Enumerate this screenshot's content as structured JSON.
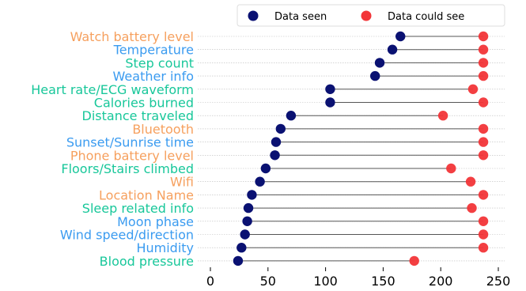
{
  "chart_data": {
    "type": "dumbbell",
    "xlim": [
      0,
      250
    ],
    "xticks": [
      0,
      50,
      100,
      150,
      200,
      250
    ],
    "grid": "horizontal dotted",
    "legend_position": "top",
    "series": [
      {
        "name": "Data seen",
        "color": "#0a1172"
      },
      {
        "name": "Data could see",
        "color": "#f23538"
      }
    ],
    "label_colors": {
      "orange": "#f6a05e",
      "blue": "#3a9bf0",
      "green": "#18c79a"
    },
    "rows": [
      {
        "label": "Watch battery level",
        "color_key": "orange",
        "seen": 165,
        "could_see": 237
      },
      {
        "label": "Temperature",
        "color_key": "blue",
        "seen": 158,
        "could_see": 237
      },
      {
        "label": "Step count",
        "color_key": "green",
        "seen": 147,
        "could_see": 237
      },
      {
        "label": "Weather info",
        "color_key": "blue",
        "seen": 143,
        "could_see": 237
      },
      {
        "label": "Heart rate/ECG waveform",
        "color_key": "green",
        "seen": 104,
        "could_see": 228
      },
      {
        "label": "Calories burned",
        "color_key": "green",
        "seen": 104,
        "could_see": 237
      },
      {
        "label": "Distance traveled",
        "color_key": "green",
        "seen": 70,
        "could_see": 202
      },
      {
        "label": "Bluetooth",
        "color_key": "orange",
        "seen": 61,
        "could_see": 237
      },
      {
        "label": "Sunset/Sunrise time",
        "color_key": "blue",
        "seen": 57,
        "could_see": 237
      },
      {
        "label": "Phone battery level",
        "color_key": "orange",
        "seen": 56,
        "could_see": 237
      },
      {
        "label": "Floors/Stairs climbed",
        "color_key": "green",
        "seen": 48,
        "could_see": 209
      },
      {
        "label": "Wifi",
        "color_key": "orange",
        "seen": 43,
        "could_see": 226
      },
      {
        "label": "Location Name",
        "color_key": "orange",
        "seen": 36,
        "could_see": 237
      },
      {
        "label": "Sleep related info",
        "color_key": "green",
        "seen": 33,
        "could_see": 227
      },
      {
        "label": "Moon phase",
        "color_key": "blue",
        "seen": 32,
        "could_see": 237
      },
      {
        "label": "Wind speed/direction",
        "color_key": "blue",
        "seen": 30,
        "could_see": 237
      },
      {
        "label": "Humidity",
        "color_key": "blue",
        "seen": 27,
        "could_see": 237
      },
      {
        "label": "Blood pressure",
        "color_key": "green",
        "seen": 24,
        "could_see": 177
      }
    ]
  }
}
